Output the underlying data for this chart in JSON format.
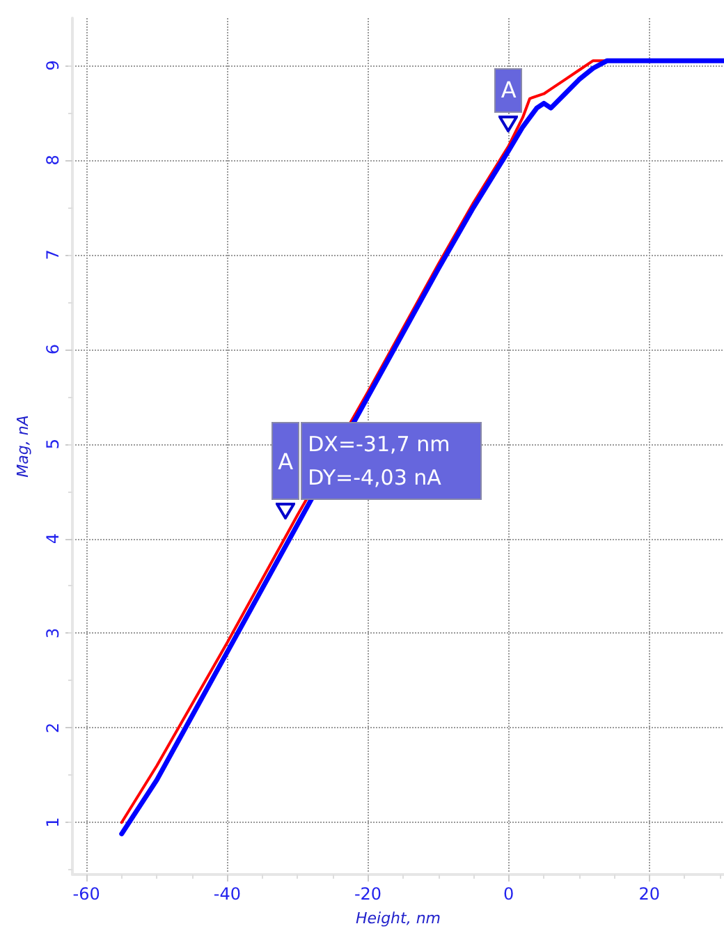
{
  "chart_data": {
    "type": "line",
    "xlabel": "Height, nm",
    "ylabel": "Mag, nA",
    "xlim": [
      -62,
      30.6
    ],
    "ylim": [
      0.45,
      9.5
    ],
    "xticks": [
      -60,
      -40,
      -20,
      0,
      20
    ],
    "yticks": [
      1,
      2,
      3,
      4,
      5,
      6,
      7,
      8,
      9
    ],
    "grid": true,
    "marker": "none",
    "line_style": "solid",
    "series": [
      {
        "color": "#ff0000",
        "x": [
          -55,
          -50,
          -40,
          -30,
          -20,
          -10,
          -5,
          0,
          2,
          3,
          5,
          6,
          8,
          10,
          12,
          30.6
        ],
        "values": [
          1.0,
          1.6,
          2.9,
          4.25,
          5.55,
          6.9,
          7.55,
          8.15,
          8.45,
          8.65,
          8.7,
          8.75,
          8.85,
          8.95,
          9.05,
          9.05
        ]
      },
      {
        "color": "#0000ff",
        "x": [
          -55,
          -50,
          -40,
          -30,
          -20,
          -10,
          -5,
          0,
          2,
          4,
          5,
          6,
          8,
          10,
          12,
          14,
          30.6
        ],
        "values": [
          0.88,
          1.45,
          2.8,
          4.15,
          5.5,
          6.85,
          7.5,
          8.1,
          8.35,
          8.55,
          8.6,
          8.55,
          8.7,
          8.85,
          8.97,
          9.05,
          9.05
        ]
      }
    ],
    "annotations": [
      {
        "text": "A",
        "x": 0,
        "y": 8.3
      },
      {
        "text": "A",
        "x": -31.7,
        "y": 4.2
      },
      "DX=-31,7 nm",
      "DY=-4,03 nA"
    ]
  }
}
